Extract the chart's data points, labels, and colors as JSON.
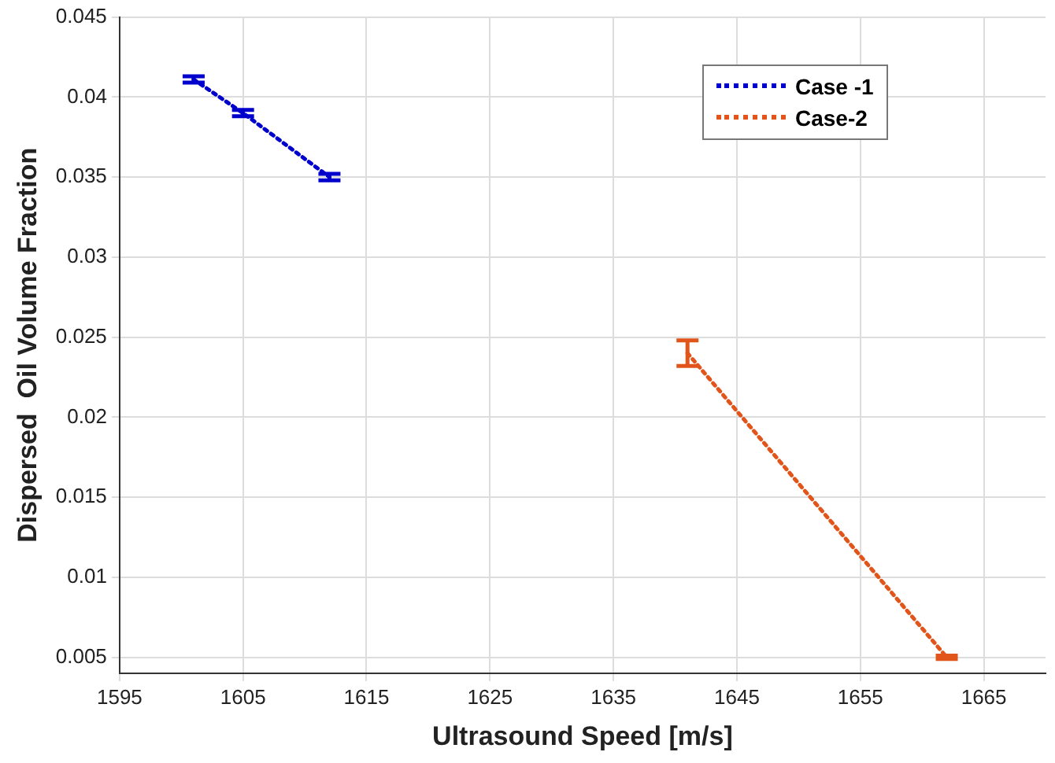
{
  "chart_data": {
    "type": "line",
    "xlabel": "Ultrasound Speed [m/s]",
    "ylabel": "Dispersed  Oil Volume Fraction",
    "series": [
      {
        "name": "Case -1",
        "color": "#0000cc",
        "x": [
          1601,
          1605,
          1612
        ],
        "values": [
          0.0411,
          0.039,
          0.035
        ],
        "errors": [
          0.0002,
          0.0002,
          0.0002
        ]
      },
      {
        "name": "Case-2",
        "color": "#e2551a",
        "x": [
          1641,
          1662
        ],
        "values": [
          0.024,
          0.005
        ],
        "errors": [
          0.0008,
          0.0001
        ]
      }
    ],
    "xlim": [
      1595,
      1670
    ],
    "xticks": [
      1595,
      1605,
      1615,
      1625,
      1635,
      1645,
      1655,
      1665
    ],
    "ylim": [
      0.004,
      0.045
    ],
    "yticks": [
      0.005,
      0.01,
      0.015,
      0.02,
      0.025,
      0.03,
      0.035,
      0.04,
      0.045
    ],
    "grid": true,
    "legend": "top right",
    "line_style": "dotted"
  }
}
